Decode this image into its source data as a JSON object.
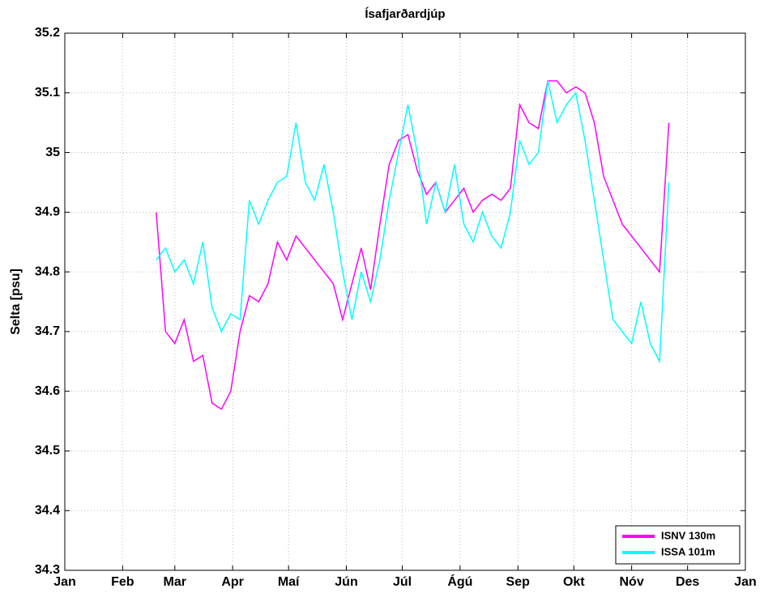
{
  "chart_data": {
    "type": "line",
    "title": "Ísafjarðardjúp",
    "y_label": "Selta [psu]",
    "x": [
      49,
      54,
      59,
      64,
      69,
      74,
      79,
      84,
      89,
      94,
      99,
      104,
      109,
      114,
      119,
      124,
      129,
      134,
      139,
      144,
      149,
      154,
      159,
      164,
      169,
      174,
      179,
      184,
      189,
      194,
      199,
      204,
      209,
      214,
      219,
      224,
      229,
      234,
      239,
      244,
      249,
      254,
      259,
      264,
      269,
      274,
      279,
      284,
      289,
      294,
      299,
      304,
      309,
      314,
      319,
      324
    ],
    "series": [
      {
        "name": "ISNV 130m",
        "color": "#ff00ff",
        "values": [
          34.9,
          34.7,
          34.68,
          34.72,
          34.65,
          34.66,
          34.58,
          34.57,
          34.6,
          34.7,
          34.76,
          34.75,
          34.78,
          34.85,
          34.82,
          34.86,
          34.84,
          34.82,
          34.8,
          34.78,
          34.72,
          34.78,
          34.84,
          34.77,
          34.88,
          34.98,
          35.02,
          35.03,
          34.97,
          34.93,
          34.95,
          34.9,
          34.92,
          34.94,
          34.9,
          34.92,
          34.93,
          34.92,
          34.94,
          35.08,
          35.05,
          35.04,
          35.12,
          35.12,
          35.1,
          35.11,
          35.1,
          35.05,
          34.96,
          34.92,
          34.88,
          34.86,
          34.84,
          34.82,
          34.8,
          35.05
        ]
      },
      {
        "name": "ISSA 101m",
        "color": "#00ffff",
        "values": [
          34.82,
          34.84,
          34.8,
          34.82,
          34.78,
          34.85,
          34.74,
          34.7,
          34.73,
          34.72,
          34.92,
          34.88,
          34.92,
          34.95,
          34.96,
          35.05,
          34.95,
          34.92,
          34.98,
          34.9,
          34.8,
          34.72,
          34.8,
          34.75,
          34.82,
          34.92,
          35.0,
          35.08,
          35.0,
          34.88,
          34.95,
          34.9,
          34.98,
          34.88,
          34.85,
          34.9,
          34.86,
          34.84,
          34.9,
          35.02,
          34.98,
          35.0,
          35.12,
          35.05,
          35.08,
          35.1,
          35.02,
          34.92,
          34.82,
          34.72,
          34.7,
          34.68,
          34.75,
          34.68,
          34.65,
          34.95
        ]
      }
    ],
    "xlim": [
      0,
      365
    ],
    "xticks": [
      {
        "value": 0,
        "label": "Jan"
      },
      {
        "value": 31,
        "label": "Feb"
      },
      {
        "value": 59,
        "label": "Mar"
      },
      {
        "value": 90,
        "label": "Apr"
      },
      {
        "value": 120,
        "label": "Maí"
      },
      {
        "value": 151,
        "label": "Jún"
      },
      {
        "value": 181,
        "label": "Júl"
      },
      {
        "value": 212,
        "label": "Ágú"
      },
      {
        "value": 243,
        "label": "Sep"
      },
      {
        "value": 273,
        "label": "Okt"
      },
      {
        "value": 304,
        "label": "Nóv"
      },
      {
        "value": 334,
        "label": "Des"
      },
      {
        "value": 365,
        "label": "Jan"
      }
    ],
    "ylim": [
      34.3,
      35.2
    ],
    "yticks": [
      34.3,
      34.4,
      34.5,
      34.6,
      34.7,
      34.8,
      34.9,
      35,
      35.1,
      35.2
    ],
    "grid": true,
    "legend": "southeast"
  }
}
